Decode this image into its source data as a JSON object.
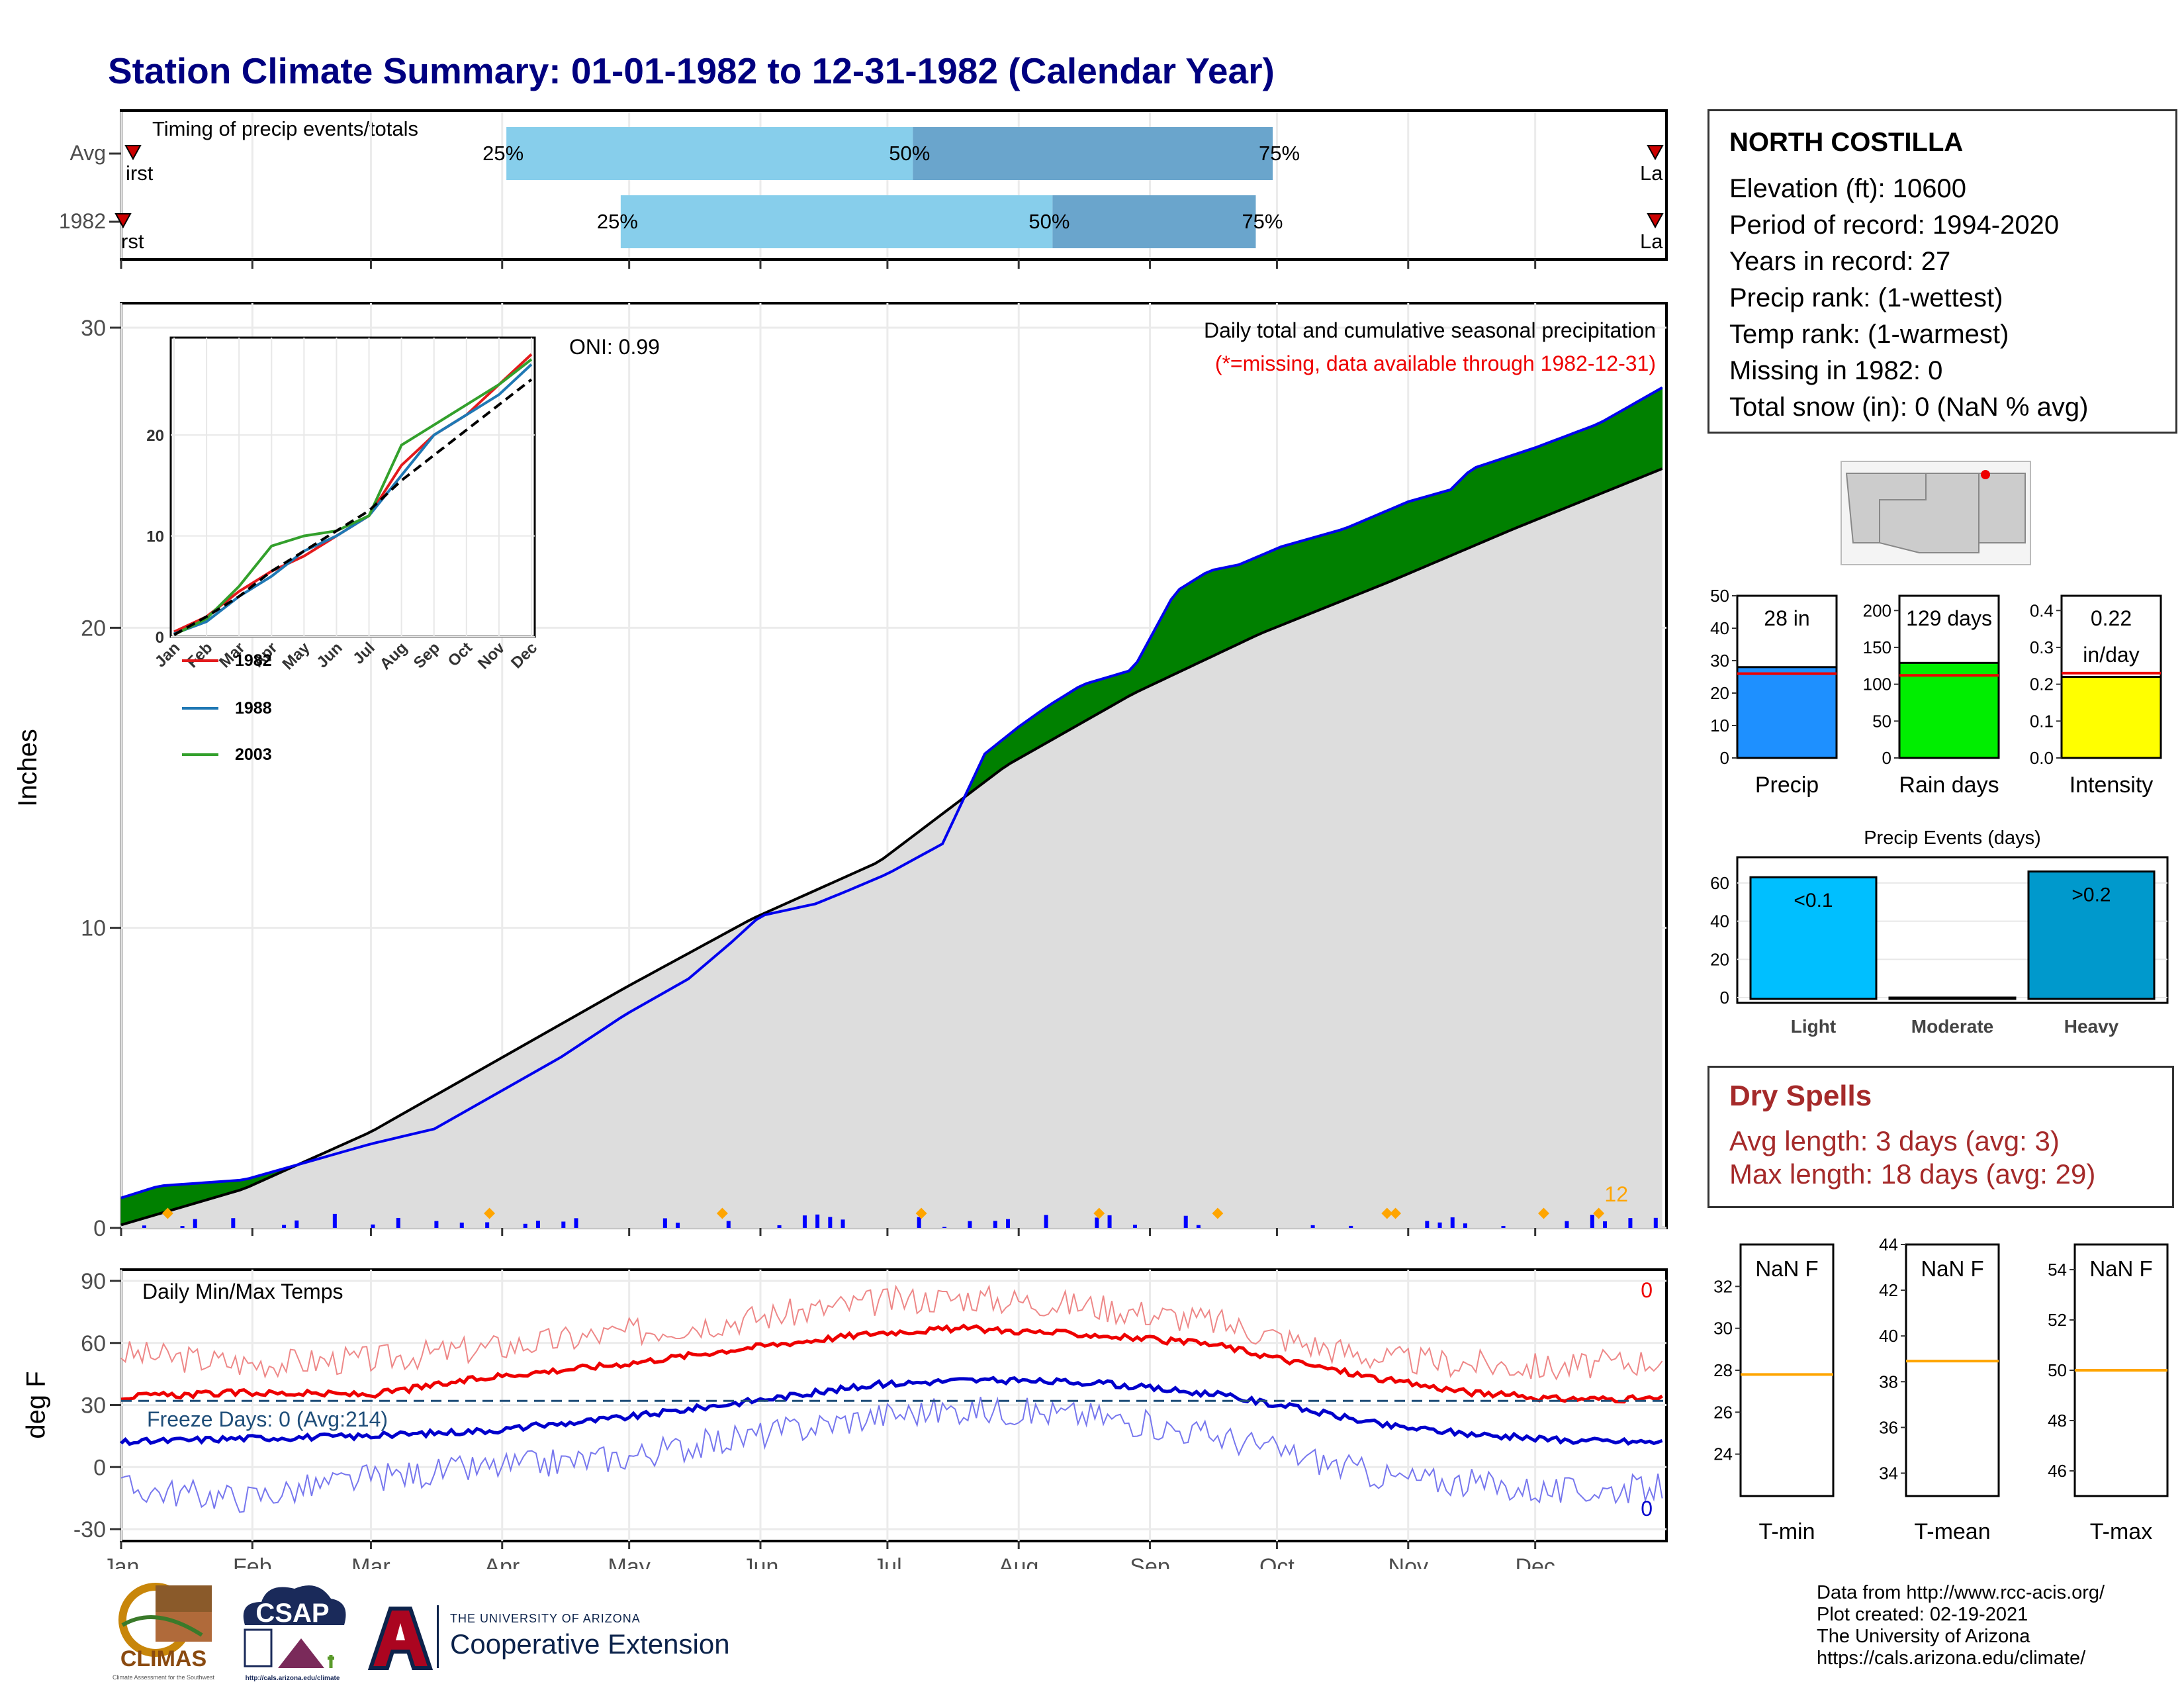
{
  "title": "Station Climate Summary: 01-01-1982 to 12-31-1982 (Calendar Year)",
  "timing": {
    "label": "Timing of precip events/totals",
    "rows": [
      {
        "name": "Avg",
        "p25": "2000-04-01",
        "p50": "2000-07-06",
        "p75": "2000-09-29",
        "first_label": "First",
        "last_label": "Last"
      },
      {
        "name": "1982",
        "p25": "2000-04-28",
        "p50": "2000-08-08",
        "p75": "2000-09-25",
        "first_label": "First",
        "last_label": "Last"
      }
    ],
    "pct_labels": [
      "25%",
      "50%",
      "75%"
    ]
  },
  "months": [
    "Jan",
    "Feb",
    "Mar",
    "Apr",
    "May",
    "Jun",
    "Jul",
    "Aug",
    "Sep",
    "Oct",
    "Nov",
    "Dec"
  ],
  "main": {
    "ylabel": "Inches",
    "yticks": [
      0,
      10,
      20,
      30
    ],
    "ylim": [
      0,
      30
    ],
    "desc": "Daily total and cumulative seasonal precipitation",
    "missing_note": "(*=missing, data available through 1982-12-31)",
    "oni": "ONI: 0.99",
    "count_label": "12",
    "colors": {
      "above": "#008000",
      "below": "#7f5000",
      "avg_fill": "#dddddd",
      "obs_line": "#0000ee"
    }
  },
  "chart_data": [
    {
      "type": "area",
      "name": "cumulative-precip",
      "title": "Daily total and cumulative seasonal precipitation",
      "ylabel": "Inches",
      "x_unit": "day of year",
      "ylim": [
        0,
        30
      ],
      "series": [
        {
          "name": "1982",
          "x": [
            1,
            10,
            30,
            45,
            60,
            75,
            90,
            105,
            120,
            135,
            145,
            152,
            165,
            172,
            182,
            195,
            205,
            213,
            220,
            228,
            240,
            250,
            258,
            265,
            275,
            290,
            305,
            315,
            320,
            335,
            350,
            365
          ],
          "y": [
            1.0,
            1.4,
            1.6,
            2.2,
            2.8,
            3.3,
            4.5,
            5.7,
            7.1,
            8.3,
            9.5,
            10.4,
            10.8,
            11.2,
            11.8,
            12.8,
            15.8,
            16.7,
            17.4,
            18.1,
            18.6,
            21.2,
            21.9,
            22.1,
            22.7,
            23.3,
            24.2,
            24.6,
            25.3,
            26.0,
            26.8,
            28.0
          ]
        },
        {
          "name": "Avg",
          "x": [
            1,
            30,
            60,
            90,
            120,
            150,
            180,
            210,
            240,
            270,
            300,
            330,
            365
          ],
          "y": [
            0.1,
            1.3,
            3.2,
            5.6,
            8.0,
            10.3,
            12.2,
            15.4,
            17.8,
            19.8,
            21.5,
            23.3,
            25.3
          ]
        }
      ]
    },
    {
      "type": "line",
      "name": "inset-cumulative",
      "categories": [
        "Jan",
        "Feb",
        "Mar",
        "Apr",
        "May",
        "Jun",
        "Jul",
        "Aug",
        "Sep",
        "Oct",
        "Nov",
        "Dec"
      ],
      "ylim": [
        0,
        30
      ],
      "yticks": [
        0,
        10,
        20
      ],
      "series": [
        {
          "name": "1982",
          "color": "#e31a1c",
          "values": [
            0.5,
            2,
            4.5,
            6.5,
            8,
            10,
            12,
            17,
            20,
            22,
            25,
            28
          ]
        },
        {
          "name": "1988",
          "color": "#1f78b4",
          "values": [
            0.3,
            1.5,
            4,
            6,
            8.5,
            10,
            12,
            16,
            20,
            22,
            24,
            27
          ]
        },
        {
          "name": "2003",
          "color": "#33a02c",
          "values": [
            0.2,
            1.8,
            5,
            9,
            10,
            10.5,
            12,
            19,
            21,
            23,
            25,
            27.5
          ]
        },
        {
          "name": "Avg",
          "color": "#000000",
          "dashed": true,
          "values": [
            0.2,
            2,
            4,
            6.5,
            8.5,
            10.5,
            12.5,
            15.5,
            18,
            20.5,
            23,
            25.5
          ]
        }
      ]
    },
    {
      "type": "line",
      "name": "daily-temps",
      "title": "Daily Min/Max Temps",
      "ylabel": "deg F",
      "ylim": [
        -32,
        92
      ],
      "yticks": [
        -30,
        0,
        30,
        60,
        90
      ],
      "freeze_line": 32,
      "freeze_label": "Freeze Days: 0 (Avg:214)",
      "max_count": "0",
      "min_count": "0",
      "series": [
        {
          "name": "Avg max",
          "color": "#ee0000",
          "x": [
            1,
            30,
            60,
            90,
            120,
            150,
            180,
            200,
            230,
            260,
            280,
            300,
            320,
            340,
            365
          ],
          "y": [
            34,
            36,
            35,
            44,
            50,
            58,
            65,
            67,
            64,
            59,
            50,
            42,
            36,
            33,
            33
          ]
        },
        {
          "name": "Avg min",
          "color": "#0000cc",
          "x": [
            1,
            30,
            60,
            90,
            120,
            150,
            180,
            200,
            230,
            260,
            280,
            300,
            320,
            340,
            365
          ],
          "y": [
            12,
            14,
            15,
            18,
            24,
            32,
            40,
            42,
            41,
            35,
            28,
            20,
            16,
            13,
            12
          ]
        },
        {
          "name": "Daily max",
          "color": "#ee8888",
          "x": [
            1,
            30,
            60,
            90,
            120,
            150,
            180,
            200,
            230,
            260,
            280,
            300,
            320,
            340,
            365
          ],
          "y": [
            55,
            50,
            52,
            58,
            65,
            72,
            80,
            82,
            78,
            70,
            60,
            52,
            50,
            48,
            52
          ]
        },
        {
          "name": "Daily min",
          "color": "#7777ee",
          "x": [
            1,
            30,
            60,
            90,
            120,
            150,
            180,
            200,
            230,
            260,
            280,
            300,
            320,
            340,
            365
          ],
          "y": [
            -10,
            -15,
            -5,
            0,
            5,
            15,
            25,
            28,
            25,
            15,
            5,
            -5,
            -8,
            -12,
            -10
          ]
        }
      ]
    },
    {
      "type": "bar",
      "name": "precip-total",
      "categories": [
        "Precip"
      ],
      "values": [
        28
      ],
      "avg": 26,
      "ylim": [
        0,
        50
      ],
      "yticks": [
        0,
        10,
        20,
        30,
        40,
        50
      ],
      "label": "28 in",
      "color": "#1e90ff"
    },
    {
      "type": "bar",
      "name": "rain-days",
      "categories": [
        "Rain days"
      ],
      "values": [
        129
      ],
      "avg": 112,
      "ylim": [
        0,
        220
      ],
      "yticks": [
        0,
        50,
        100,
        150,
        200
      ],
      "label": "129 days",
      "color": "#00ee00"
    },
    {
      "type": "bar",
      "name": "intensity",
      "categories": [
        "Intensity"
      ],
      "values": [
        0.22
      ],
      "avg": 0.23,
      "ylim": [
        0,
        0.44
      ],
      "yticks": [
        0.0,
        0.1,
        0.2,
        0.3,
        0.4
      ],
      "label": "0.22 in/day",
      "color": "#ffff00"
    },
    {
      "type": "bar",
      "name": "precip-events",
      "title": "Precip Events (days)",
      "categories": [
        "Light",
        "Moderate",
        "Heavy"
      ],
      "values": [
        63,
        0,
        66
      ],
      "labels": [
        "<0.1",
        "",
        "&gt;0.2"
      ],
      "ylim": [
        0,
        70
      ],
      "yticks": [
        0,
        20,
        40,
        60
      ],
      "colors": [
        "#00bfff",
        "#00bfff",
        "#0099cc"
      ]
    },
    {
      "type": "bar",
      "name": "t-min",
      "categories": [
        "T-min"
      ],
      "label": "NaN F",
      "avg": 27.8,
      "ylim": [
        22,
        34
      ],
      "yticks": [
        24,
        26,
        28,
        30,
        32
      ]
    },
    {
      "type": "bar",
      "name": "t-mean",
      "categories": [
        "T-mean"
      ],
      "label": "NaN F",
      "avg": 38.9,
      "ylim": [
        33,
        44
      ],
      "yticks": [
        34,
        36,
        38,
        40,
        42,
        44
      ]
    },
    {
      "type": "bar",
      "name": "t-max",
      "categories": [
        "T-max"
      ],
      "label": "NaN F",
      "avg": 50,
      "ylim": [
        45,
        55
      ],
      "yticks": [
        46,
        48,
        50,
        52,
        54
      ]
    }
  ],
  "station": {
    "name": "NORTH COSTILLA",
    "lines": [
      "Elevation (ft): 10600",
      "Period of record: 1994-2020",
      "Years in record: 27",
      "Precip rank:  (1-wettest)",
      "Temp rank:  (1-warmest)",
      "Missing in 1982: 0",
      "Total snow (in): 0 (NaN % avg)"
    ]
  },
  "dry_spells": {
    "title": "Dry Spells",
    "avg": "Avg length: 3 days (avg: 3)",
    "max": "Max length: 18 days (avg: 29)"
  },
  "footer": {
    "lines": [
      "Data from http://www.rcc-acis.org/",
      "Plot created: 02-19-2021",
      "The University of Arizona",
      "https://cals.arizona.edu/climate/"
    ],
    "logo_climas": "CLIMAS",
    "logo_climas_sub": "Climate Assessment for the Southwest",
    "logo_csap": "CSAP",
    "logo_csap_url": "http://cals.arizona.edu/climate",
    "ua_small": "THE UNIVERSITY OF ARIZONA",
    "ua_big": "Cooperative Extension"
  }
}
